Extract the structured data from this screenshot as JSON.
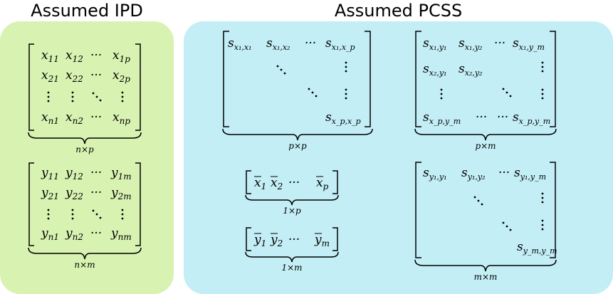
{
  "headings": {
    "ipd": "Assumed IPD",
    "pcss": "Assumed PCSS"
  },
  "ipd": {
    "x_matrix": {
      "rows": [
        [
          "x11",
          "x12",
          "···",
          "x1p"
        ],
        [
          "x21",
          "x22",
          "···",
          "x2p"
        ],
        [
          "xn1",
          "xn2",
          "···",
          "xnp"
        ]
      ],
      "dims": "n×p"
    },
    "y_matrix": {
      "rows": [
        [
          "y11",
          "y12",
          "···",
          "y1m"
        ],
        [
          "y21",
          "y22",
          "···",
          "y2m"
        ],
        [
          "yn1",
          "yn2",
          "···",
          "ynm"
        ]
      ],
      "dims": "n×m"
    }
  },
  "pcss": {
    "cov_x": {
      "entries": [
        "s(x1,x1)",
        "s(x1,x2)",
        "···",
        "s(x1,xp)",
        "s(xp,xp)"
      ],
      "dims": "p×p"
    },
    "cov_xy": {
      "entries": [
        "s(x1,y1)",
        "s(x1,y2)",
        "···",
        "s(x1,ym)",
        "s(x2,y1)",
        "s(x2,y2)",
        "s(xp,ym)",
        "···",
        "···",
        "s(xp,ym)"
      ],
      "dims": "p×m"
    },
    "cov_y": {
      "entries": [
        "s(y1,y1)",
        "s(y1,y2)",
        "···",
        "s(y1,ym)",
        "s(ym,ym)"
      ],
      "dims": "m×m"
    },
    "mean_x": {
      "entries": [
        "x̄1",
        "x̄2",
        "···",
        "x̄p"
      ],
      "dims": "1×p"
    },
    "mean_y": {
      "entries": [
        "ȳ1",
        "ȳ2",
        "···",
        "ȳm"
      ],
      "dims": "1×m"
    }
  }
}
